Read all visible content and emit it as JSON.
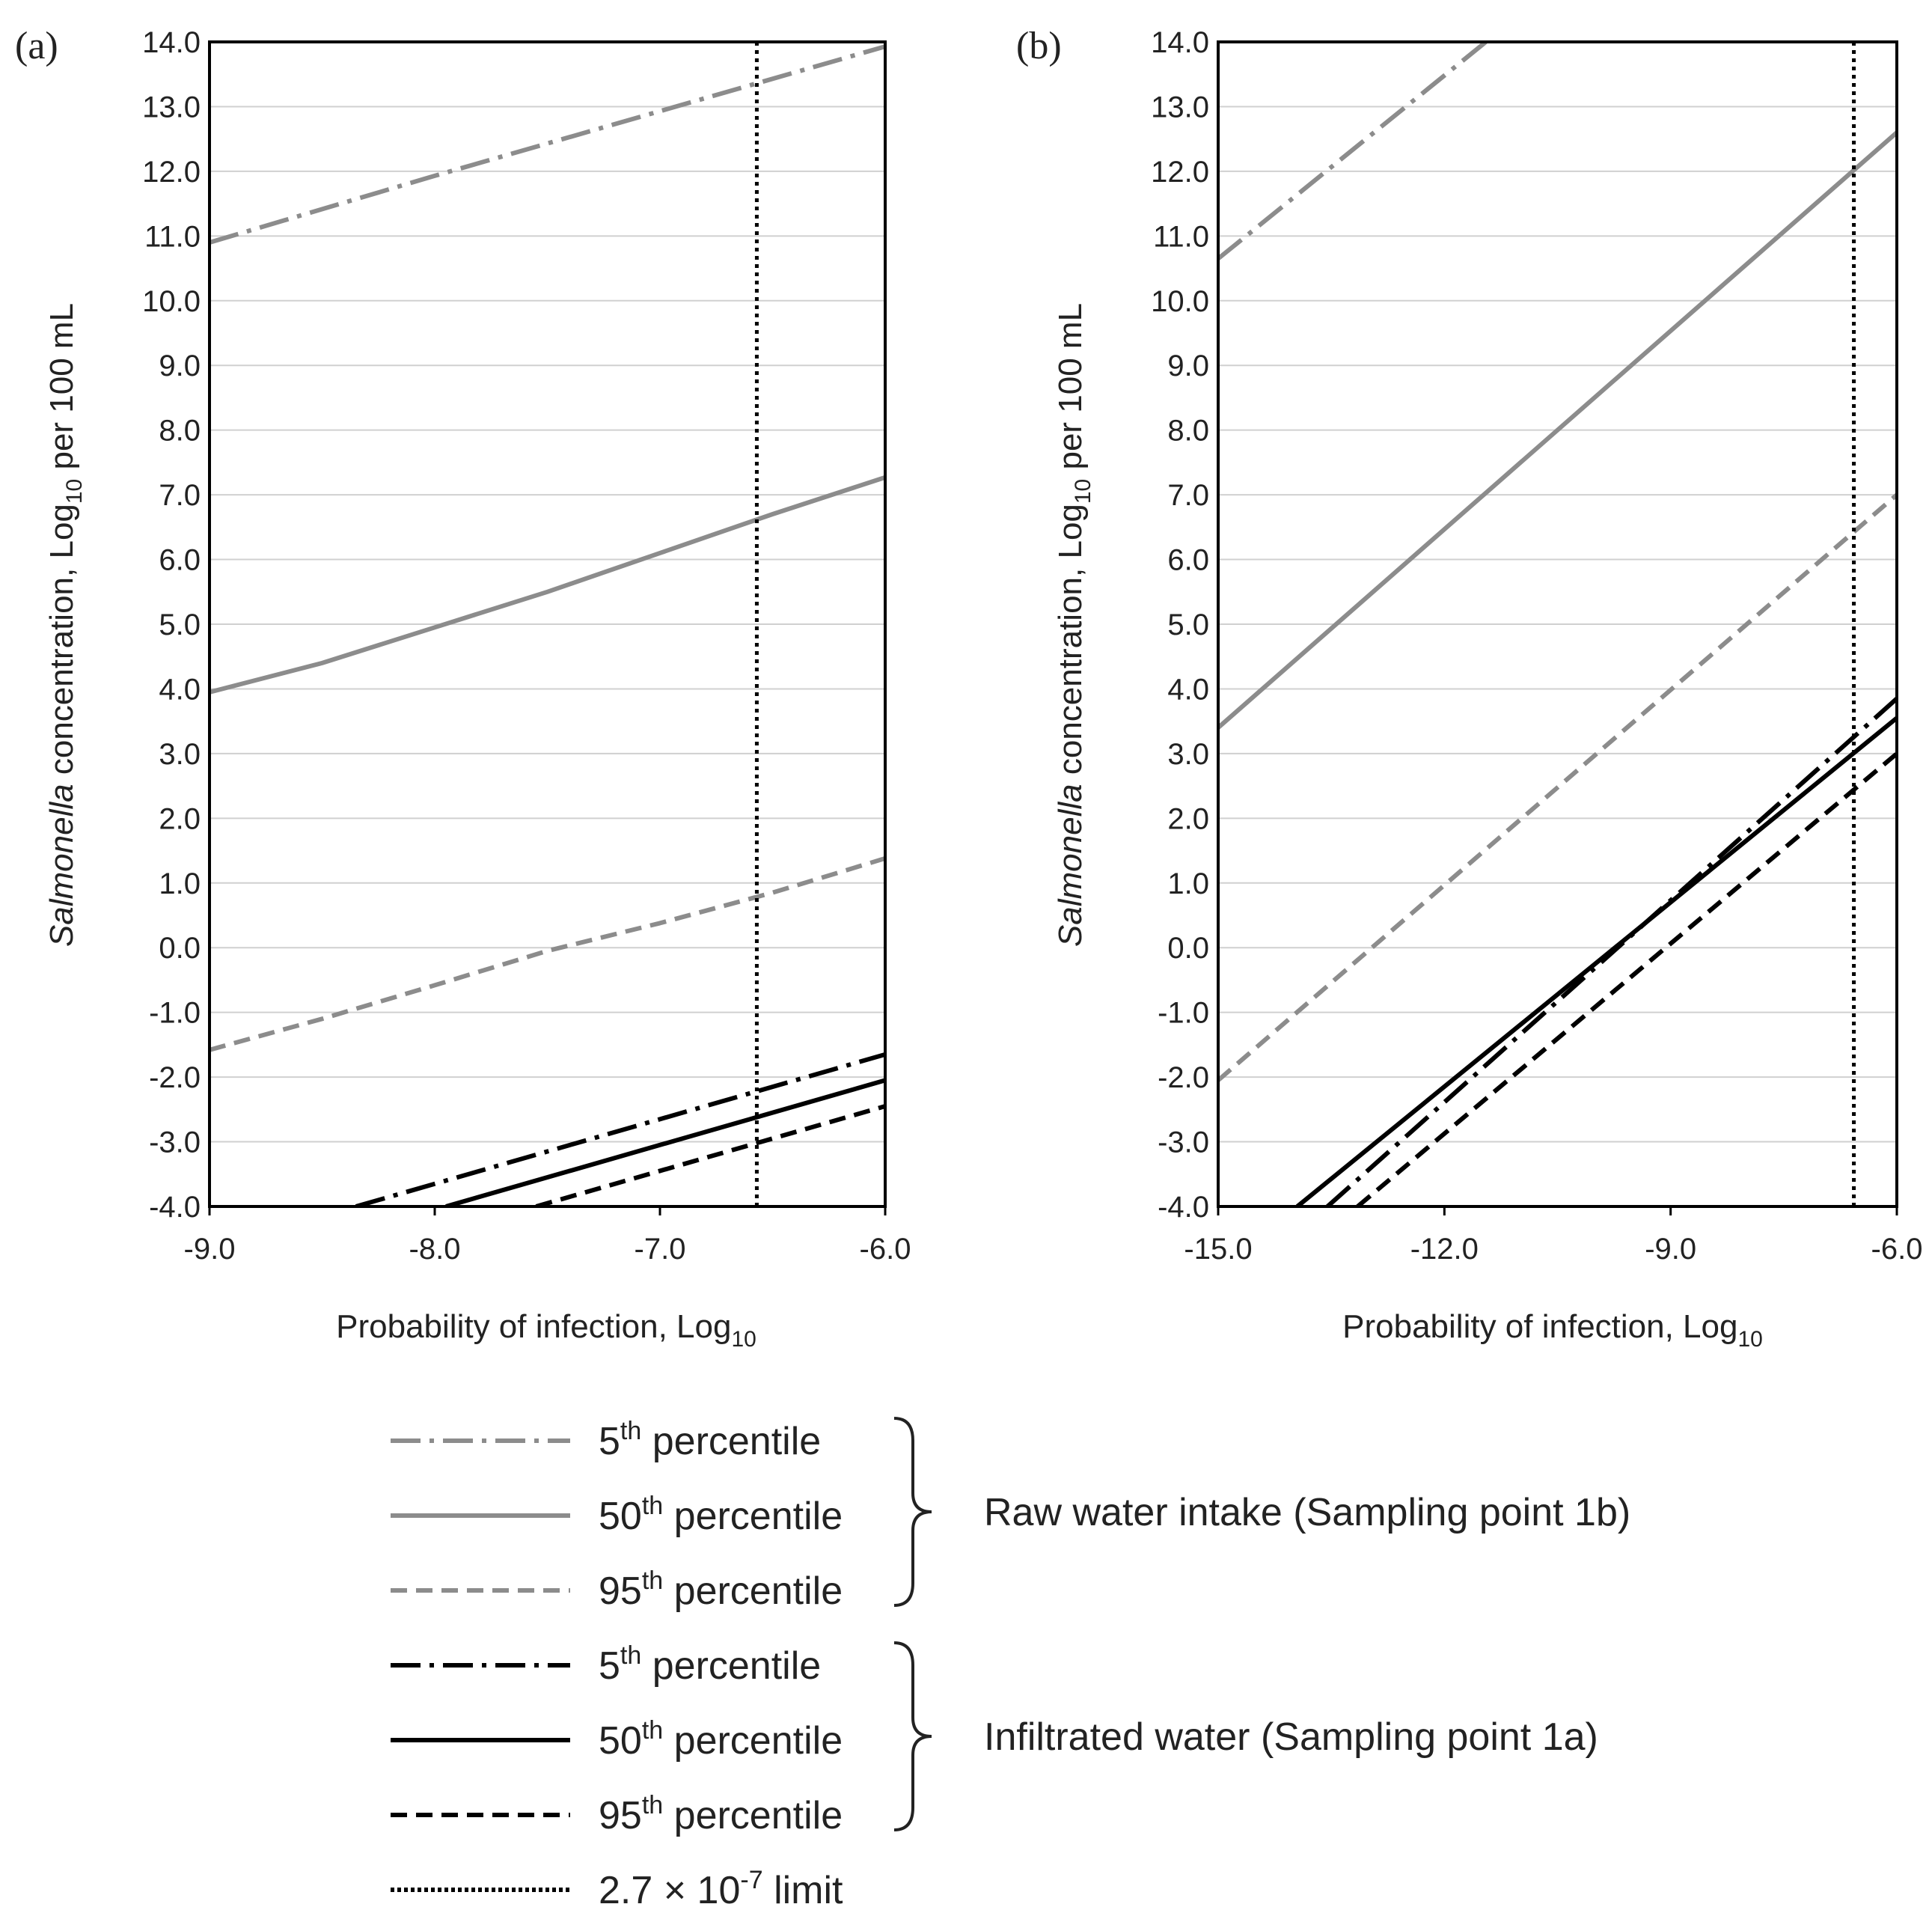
{
  "chart_data": [
    {
      "type": "line",
      "panel_label": "(a)",
      "xlabel": "Probability of infection, Log",
      "xlabel_sub": "10",
      "ylabel_italic": "Salmonella",
      "ylabel_main": " concentration, Log",
      "ylabel_sub": "10",
      "ylabel_end": " per 100 mL",
      "xlim": [
        -9.0,
        -6.0
      ],
      "ylim": [
        -4.0,
        14.0
      ],
      "xticks": [
        "-9.0",
        "-8.0",
        "-7.0",
        "-6.0"
      ],
      "yticks": [
        "-4.0",
        "-3.0",
        "-2.0",
        "-1.0",
        "0.0",
        "1.0",
        "2.0",
        "3.0",
        "4.0",
        "5.0",
        "6.0",
        "7.0",
        "8.0",
        "9.0",
        "10.0",
        "11.0",
        "12.0",
        "13.0",
        "14.0"
      ],
      "grid": true,
      "limit_x": -6.57,
      "series": [
        {
          "name": "Raw water intake 5th percentile",
          "color": "#8c8c8c",
          "dash": "dashdot",
          "x": [
            -9.0,
            -8.0,
            -7.0,
            -6.0
          ],
          "y": [
            10.9,
            11.93,
            12.93,
            13.93
          ]
        },
        {
          "name": "Raw water intake 50th percentile",
          "color": "#8c8c8c",
          "dash": "solid",
          "x": [
            -9.0,
            -8.5,
            -8.0,
            -7.5,
            -7.0,
            -6.5,
            -6.0
          ],
          "y": [
            3.95,
            4.4,
            4.95,
            5.5,
            6.1,
            6.7,
            7.27
          ]
        },
        {
          "name": "Raw water intake 95th percentile",
          "color": "#8c8c8c",
          "dash": "dashed",
          "x": [
            -9.0,
            -8.5,
            -8.0,
            -7.5,
            -7.0,
            -6.5,
            -6.0
          ],
          "y": [
            -1.58,
            -1.1,
            -0.58,
            -0.05,
            0.38,
            0.85,
            1.38
          ]
        },
        {
          "name": "Infiltrated water 5th percentile",
          "color": "#000000",
          "dash": "dashdot",
          "x": [
            -8.35,
            -6.0
          ],
          "y": [
            -4.0,
            -1.65
          ]
        },
        {
          "name": "Infiltrated water 50th percentile",
          "color": "#000000",
          "dash": "solid",
          "x": [
            -7.95,
            -6.0
          ],
          "y": [
            -4.0,
            -2.05
          ]
        },
        {
          "name": "Infiltrated water 95th percentile",
          "color": "#000000",
          "dash": "dashed",
          "x": [
            -7.55,
            -6.0
          ],
          "y": [
            -4.0,
            -2.45
          ]
        }
      ]
    },
    {
      "type": "line",
      "panel_label": "(b)",
      "xlabel": "Probability of infection, Log",
      "xlabel_sub": "10",
      "ylabel_italic": "Salmonella",
      "ylabel_main": " concentration, Log",
      "ylabel_sub": "10",
      "ylabel_end": " per 100 mL",
      "xlim": [
        -15.0,
        -6.0
      ],
      "ylim": [
        -4.0,
        14.0
      ],
      "xticks": [
        "-15.0",
        "-12.0",
        "-9.0",
        "-6.0"
      ],
      "yticks": [
        "-4.0",
        "-3.0",
        "-2.0",
        "-1.0",
        "0.0",
        "1.0",
        "2.0",
        "3.0",
        "4.0",
        "5.0",
        "6.0",
        "7.0",
        "8.0",
        "9.0",
        "10.0",
        "11.0",
        "12.0",
        "13.0",
        "14.0"
      ],
      "grid": true,
      "limit_x": -6.57,
      "series": [
        {
          "name": "Raw water intake 5th percentile",
          "color": "#8c8c8c",
          "dash": "dashdot",
          "x": [
            -15.0,
            -11.45
          ],
          "y": [
            10.65,
            14.0
          ]
        },
        {
          "name": "Raw water intake 50th percentile",
          "color": "#8c8c8c",
          "dash": "solid",
          "x": [
            -15.0,
            -6.0
          ],
          "y": [
            3.4,
            12.6
          ]
        },
        {
          "name": "Raw water intake 95th percentile",
          "color": "#8c8c8c",
          "dash": "dashed",
          "x": [
            -15.0,
            -6.0
          ],
          "y": [
            -2.05,
            7.0
          ]
        },
        {
          "name": "Infiltrated water 5th percentile",
          "color": "#000000",
          "dash": "dashdot",
          "x": [
            -13.55,
            -6.0
          ],
          "y": [
            -4.0,
            3.85
          ]
        },
        {
          "name": "Infiltrated water 50th percentile",
          "color": "#000000",
          "dash": "solid",
          "x": [
            -13.95,
            -6.0
          ],
          "y": [
            -4.0,
            3.55
          ]
        },
        {
          "name": "Infiltrated water 95th percentile",
          "color": "#000000",
          "dash": "dashed",
          "x": [
            -13.15,
            -6.0
          ],
          "y": [
            -4.0,
            3.0
          ]
        }
      ]
    }
  ],
  "legend": {
    "items": [
      {
        "num": "5",
        "sup": "th",
        "text": " percentile",
        "color": "#8c8c8c",
        "dash": "dashdot"
      },
      {
        "num": "50",
        "sup": "th",
        "text": " percentile",
        "color": "#8c8c8c",
        "dash": "solid"
      },
      {
        "num": "95",
        "sup": "th",
        "text": " percentile",
        "color": "#8c8c8c",
        "dash": "dashed"
      },
      {
        "num": "5",
        "sup": "th",
        "text": " percentile",
        "color": "#000000",
        "dash": "dashdot"
      },
      {
        "num": "50",
        "sup": "th",
        "text": " percentile",
        "color": "#000000",
        "dash": "solid"
      },
      {
        "num": "95",
        "sup": "th",
        "text": " percentile",
        "color": "#000000",
        "dash": "dashed"
      },
      {
        "num": "2.7 × 10",
        "sup": "-7",
        "text": " limit",
        "color": "#000000",
        "dash": "dotted"
      }
    ],
    "groups": [
      {
        "label": "Raw water intake (Sampling point 1b)"
      },
      {
        "label": "Infiltrated water (Sampling point 1a)"
      }
    ]
  }
}
